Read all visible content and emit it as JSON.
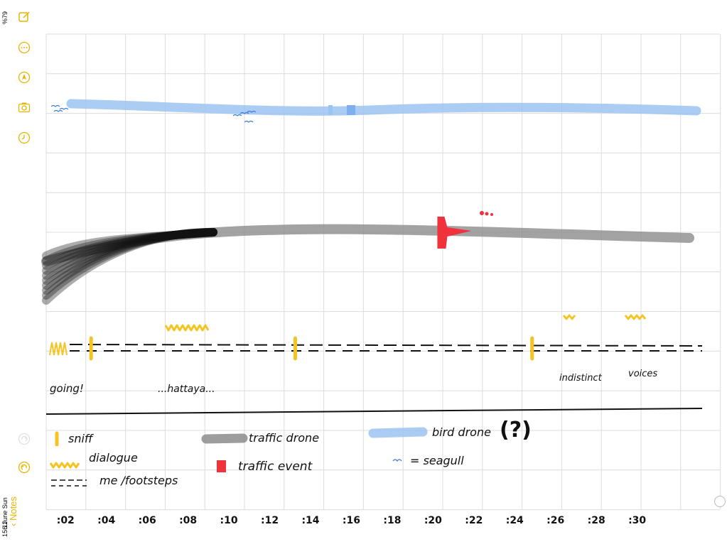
{
  "status": {
    "battery": "%79",
    "time": "15:11",
    "date": "6 June Sun"
  },
  "sidebar": {
    "back_label": "Notes",
    "tools": [
      {
        "icon": "compose-icon"
      },
      {
        "icon": "more-icon"
      },
      {
        "icon": "pen-tip-icon"
      },
      {
        "icon": "camera-icon"
      },
      {
        "icon": "clock-icon"
      },
      {
        "icon": "undo-icon"
      },
      {
        "icon": "redo-icon"
      }
    ]
  },
  "colors": {
    "accent": "#e8b400",
    "bird_drone": "#9cc4f2",
    "traffic_drone": "#8c8c8c",
    "traffic_event": "#f0323c",
    "dialogue": "#f5c423",
    "ink": "#111111",
    "grid": "#dcdcdc"
  },
  "chart_data": {
    "type": "annotated-sketch",
    "x_ticks": [
      ":02",
      ":04",
      ":06",
      ":08",
      ":10",
      ":12",
      ":14",
      ":16",
      ":18",
      ":20",
      ":22",
      ":24",
      ":26",
      ":28",
      ":30"
    ],
    "xlim": [
      1,
      34
    ],
    "sniff_times": [
      3.2,
      13.2,
      24.8
    ],
    "traffic_event_time": 20.3,
    "dialogue_times": [
      8.0,
      26.2,
      30.4
    ],
    "annotations": [
      {
        "text": "going!",
        "at": 1.1
      },
      {
        "text": "...hattaya...",
        "at": 7.8
      },
      {
        "text": "indistinct",
        "at": 25.2
      },
      {
        "text": "voices",
        "at": 29.9
      }
    ],
    "legend": [
      {
        "label": "sniff",
        "kind": "sniff"
      },
      {
        "label": "dialogue",
        "kind": "dialogue"
      },
      {
        "label": "me /footsteps",
        "kind": "footsteps"
      },
      {
        "label": "traffic drone",
        "kind": "traffic-drone"
      },
      {
        "label": "traffic event",
        "kind": "traffic-event"
      },
      {
        "label": "bird drone",
        "kind": "bird-drone"
      },
      {
        "label": "= seagull",
        "kind": "seagull"
      }
    ],
    "legend_note": "(?)"
  }
}
